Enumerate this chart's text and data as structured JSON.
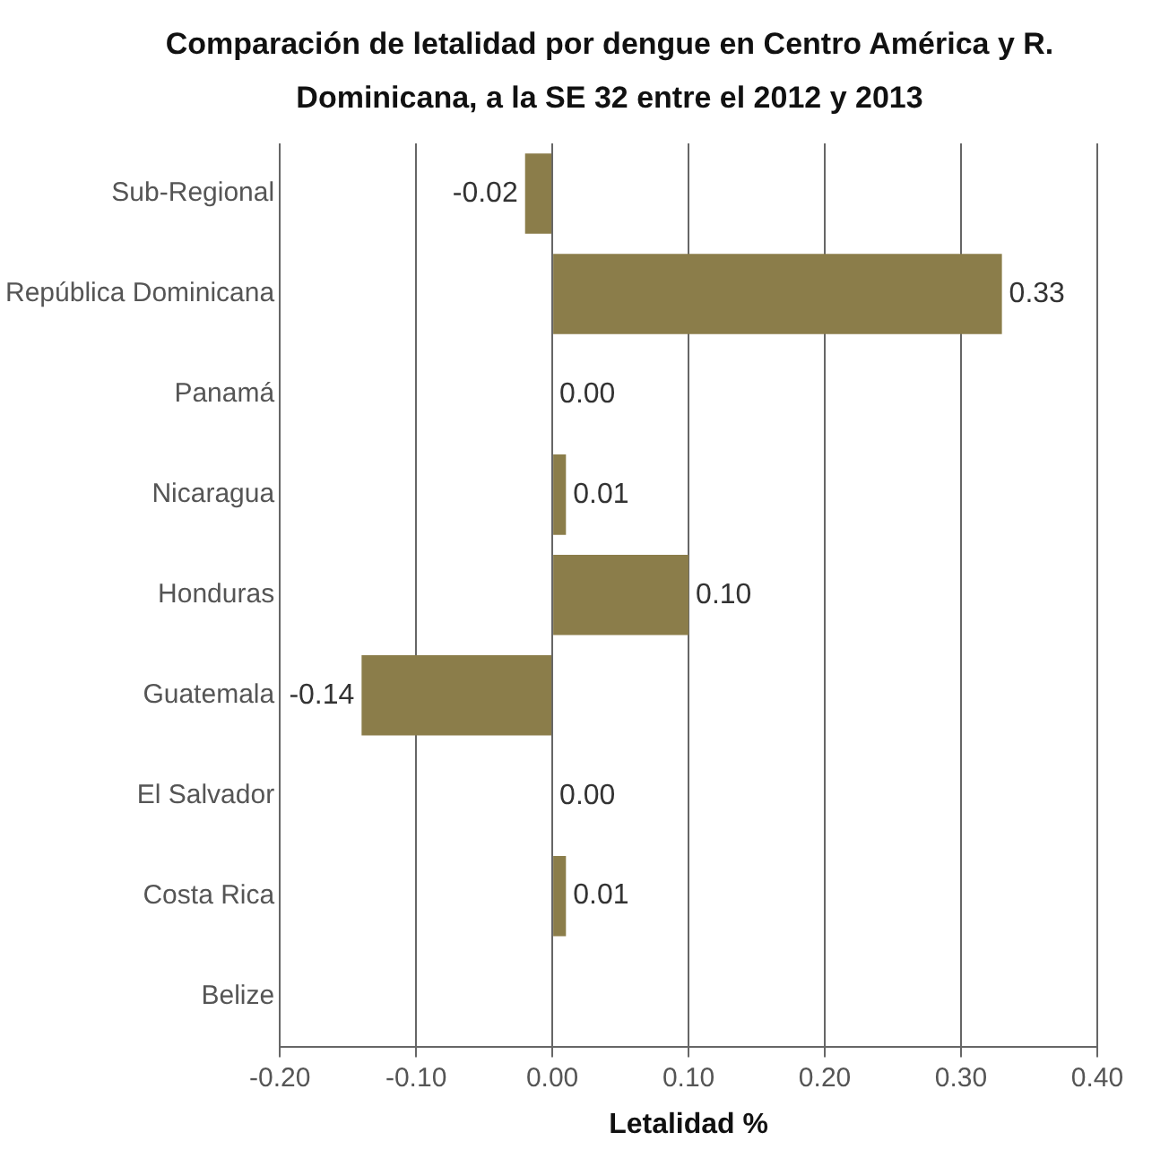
{
  "chart_data": {
    "type": "bar",
    "orientation": "horizontal",
    "title": "Comparación de letalidad por dengue en Centro América y R. Dominicana, a la SE 32 entre el 2012 y 2013",
    "xlabel": "Letalidad %",
    "categories": [
      "Sub-Regional",
      "República Dominicana",
      "Panamá",
      "Nicaragua",
      "Honduras",
      "Guatemala",
      "El Salvador",
      "Costa Rica",
      "Belize"
    ],
    "values": [
      -0.02,
      0.33,
      0,
      0.01,
      0.1,
      -0.14,
      0,
      0.01,
      null
    ],
    "value_labels": [
      "-0.02",
      "0.33",
      "0.00",
      "0.01",
      "0.10",
      "-0.14",
      "0.00",
      "0.01",
      null
    ],
    "color": "#8b7d4a",
    "xlim": [
      -0.2,
      0.4
    ],
    "xticks": [
      {
        "value": -0.2,
        "label": "-0.20"
      },
      {
        "value": -0.1,
        "label": "-0.10"
      },
      {
        "value": 0,
        "label": "0.00"
      },
      {
        "value": 0.1,
        "label": "0.10"
      },
      {
        "value": 0.2,
        "label": "0.20"
      },
      {
        "value": 0.3,
        "label": "0.30"
      },
      {
        "value": 0.4,
        "label": "0.40"
      }
    ],
    "grid": "x",
    "legend": false
  }
}
